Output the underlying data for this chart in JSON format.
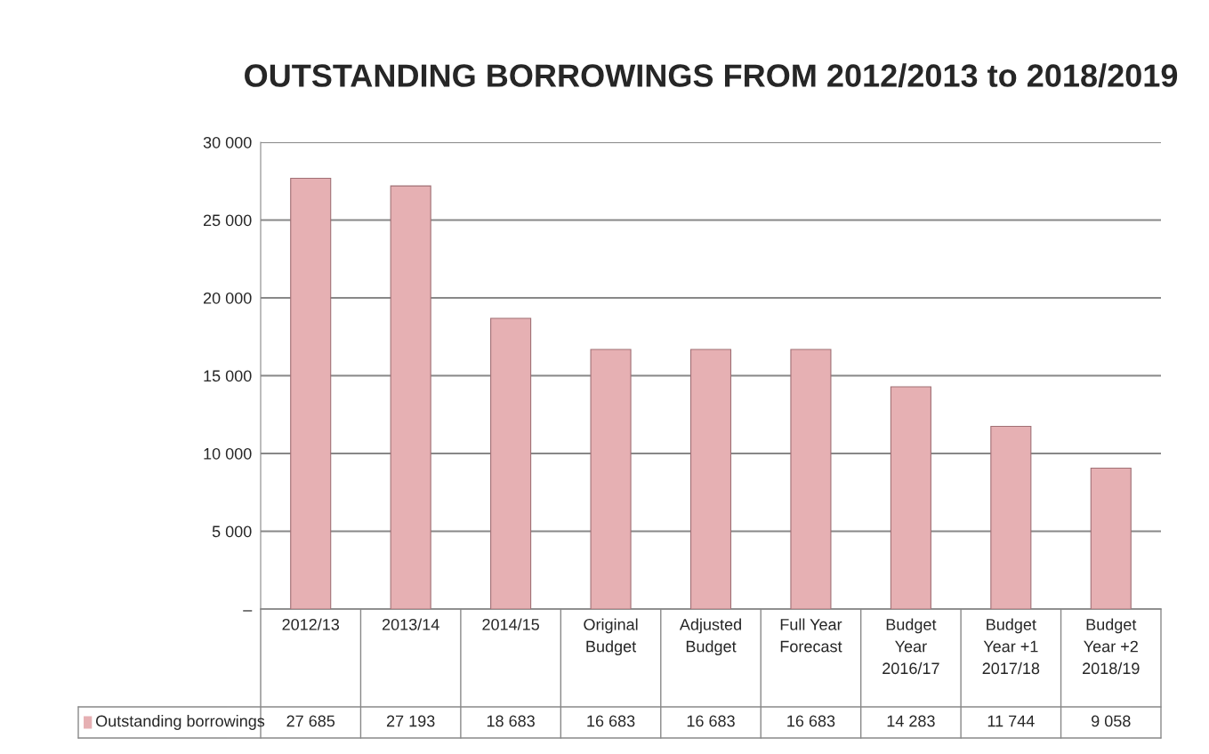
{
  "chart_data": {
    "type": "bar",
    "title": "OUTSTANDING BORROWINGS FROM 2012/2013 to 2018/2019",
    "categories": [
      "2012/13",
      "2013/14",
      "2014/15",
      "Original\nBudget",
      "Adjusted\nBudget",
      "Full Year\nForecast",
      "Budget\nYear\n2016/17",
      "Budget\nYear +1\n2017/18",
      "Budget\nYear +2\n2018/19"
    ],
    "series": [
      {
        "name": "Outstanding borrowings",
        "color": "#e6b0b3",
        "values": [
          27685,
          27193,
          18683,
          16683,
          16683,
          16683,
          14283,
          11744,
          9058
        ],
        "value_labels": [
          "27 685",
          "27 193",
          "18 683",
          "16 683",
          "16 683",
          "16 683",
          "14 283",
          "11 744",
          "9 058"
        ]
      }
    ],
    "ylim": [
      0,
      30000
    ],
    "yticks": [
      {
        "value": 0,
        "label": "–"
      },
      {
        "value": 5000,
        "label": "5 000"
      },
      {
        "value": 10000,
        "label": "10 000"
      },
      {
        "value": 15000,
        "label": "15 000"
      },
      {
        "value": 20000,
        "label": "20 000"
      },
      {
        "value": 25000,
        "label": "25 000"
      },
      {
        "value": 30000,
        "label": "30 000"
      }
    ],
    "grid": "y",
    "legend": "bottom left"
  }
}
